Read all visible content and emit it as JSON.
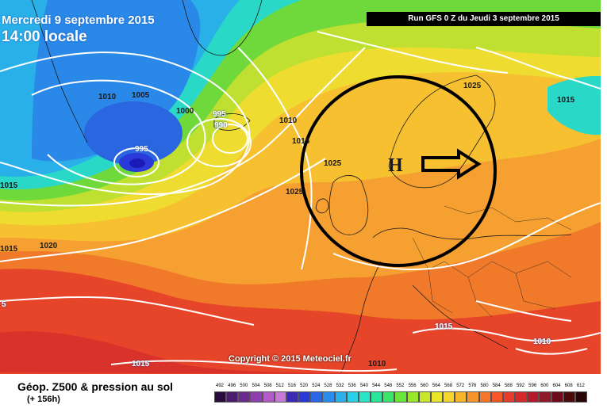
{
  "header": {
    "date": "Mercredi 9 septembre 2015",
    "time": "14:00 locale",
    "run": "Run GFS 0 Z du Jeudi 3 septembre 2015"
  },
  "copyright": "Copyright © 2015 Meteociel.fr",
  "footer": {
    "title": "Géop. Z500 & pression au sol",
    "subtitle": "(+ 156h)"
  },
  "annotation": {
    "high_symbol": "H",
    "arrow_direction": "east",
    "circle_color": "#000000"
  },
  "isobar_labels": [
    {
      "text": "1010",
      "style": "dark"
    },
    {
      "text": "1005",
      "style": "dark"
    },
    {
      "text": "1000",
      "style": "dark"
    },
    {
      "text": "995",
      "style": "white"
    },
    {
      "text": "990",
      "style": "white"
    },
    {
      "text": "995",
      "style": "white"
    },
    {
      "text": "1010",
      "style": "dark"
    },
    {
      "text": "1015",
      "style": "dark"
    },
    {
      "text": "1025",
      "style": "dark"
    },
    {
      "text": "1025",
      "style": "dark"
    },
    {
      "text": "1025",
      "style": "dark"
    },
    {
      "text": "1015",
      "style": "dark"
    },
    {
      "text": "1015",
      "style": "dark"
    },
    {
      "text": "1015",
      "style": "dark"
    },
    {
      "text": "1020",
      "style": "dark"
    },
    {
      "text": "5",
      "style": "white"
    },
    {
      "text": "1015",
      "style": "white"
    },
    {
      "text": "1015",
      "style": "white"
    },
    {
      "text": "1010",
      "style": "white"
    },
    {
      "text": "1010",
      "style": "dark"
    }
  ],
  "legend": {
    "labels": [
      "492",
      "496",
      "500",
      "504",
      "508",
      "512",
      "516",
      "520",
      "524",
      "528",
      "532",
      "536",
      "540",
      "544",
      "548",
      "552",
      "556",
      "560",
      "564",
      "568",
      "572",
      "576",
      "580",
      "584",
      "588",
      "592",
      "596",
      "600",
      "604",
      "608",
      "612"
    ],
    "colors": [
      "#2a0a3a",
      "#4c1a6e",
      "#6a2a8e",
      "#8d3fae",
      "#b45acb",
      "#c87ad6",
      "#3a2ab4",
      "#2a3ad8",
      "#2a66e6",
      "#2a8cec",
      "#2ab0ec",
      "#2ad0e6",
      "#2ae6c6",
      "#2ae69a",
      "#3ae66a",
      "#6ae63a",
      "#9ae62a",
      "#cae62a",
      "#eae62a",
      "#f6d62a",
      "#f6b62a",
      "#f6962a",
      "#f6762a",
      "#f6562a",
      "#ea3a2a",
      "#d62a2a",
      "#b61a2a",
      "#8e1a2a",
      "#6e0a1a",
      "#4a0a0a",
      "#2a0505"
    ]
  }
}
